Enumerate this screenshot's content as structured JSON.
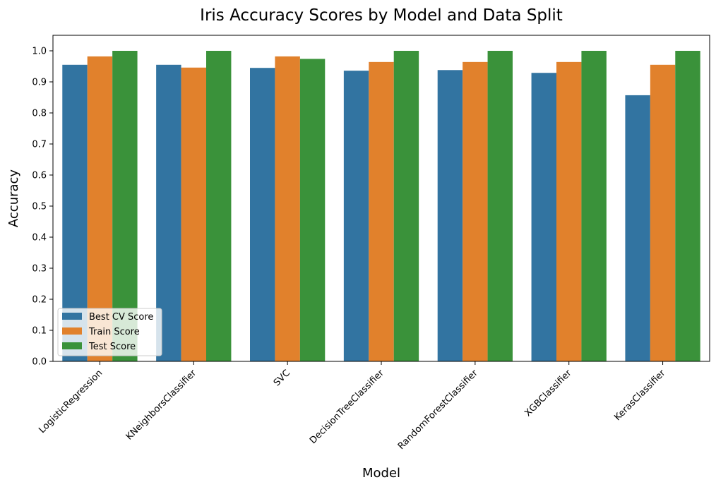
{
  "chart_data": {
    "type": "bar",
    "title": "Iris Accuracy Scores by Model and Data Split",
    "xlabel": "Model",
    "ylabel": "Accuracy",
    "ylim": [
      0,
      1.05
    ],
    "yticks": [
      "0.0",
      "0.1",
      "0.2",
      "0.3",
      "0.4",
      "0.5",
      "0.6",
      "0.7",
      "0.8",
      "0.9",
      "1.0"
    ],
    "grid": false,
    "legend_position": "lower-left",
    "categories": [
      "LogisticRegression",
      "KNeighborsClassifier",
      "SVC",
      "DecisionTreeClassifier",
      "RandomForestClassifier",
      "XGBClassifier",
      "KerasClassifier"
    ],
    "series": [
      {
        "name": "Best CV Score",
        "color": "#3274a1",
        "values": [
          0.955,
          0.955,
          0.945,
          0.936,
          0.938,
          0.929,
          0.857
        ]
      },
      {
        "name": "Train Score",
        "color": "#e1812c",
        "values": [
          0.982,
          0.946,
          0.982,
          0.964,
          0.964,
          0.964,
          0.955
        ]
      },
      {
        "name": "Test Score",
        "color": "#3a923a",
        "values": [
          1.0,
          1.0,
          0.974,
          1.0,
          1.0,
          1.0,
          1.0
        ]
      }
    ]
  }
}
